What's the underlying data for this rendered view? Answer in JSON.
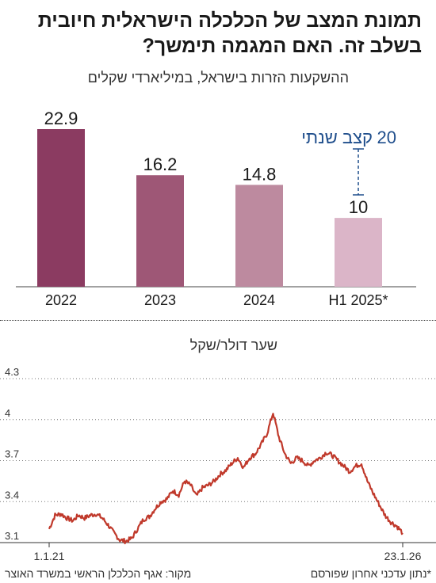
{
  "title": "תמונת המצב של הכלכלה הישראלית חיובית בשלב זה. האם המגמה תימשך?",
  "colors": {
    "accent": "#c0392b",
    "annotation": "#1f4e8c"
  },
  "chart_data": [
    {
      "type": "bar",
      "title": "ההשקעות הזרות בישראל, במיליארדי שקלים",
      "categories": [
        "2022",
        "2023",
        "2024",
        "H1 2025*"
      ],
      "values": [
        22.9,
        16.2,
        14.8,
        10
      ],
      "value_labels": [
        "22.9",
        "16.2",
        "14.8",
        "10"
      ],
      "bar_colors": [
        "#8b3b61",
        "#9e5776",
        "#bd8a9f",
        "#dbb5c8"
      ],
      "annotation": {
        "category": "H1 2025*",
        "value": 20,
        "text_value": "20",
        "text_label": "קצב שנתי"
      },
      "ylim": [
        0,
        22.9
      ]
    },
    {
      "type": "line",
      "title": "שער דולר/שקל",
      "x_start": "1.1.21",
      "x_end": "23.1.26",
      "x_tick_labels": [
        "1.1.21",
        "23.1.26"
      ],
      "y_ticks": [
        "3.1",
        "3.4",
        "3.7",
        "4",
        "4.3"
      ],
      "ylim": [
        3.1,
        4.3
      ],
      "series": [
        {
          "color": "#c0392b",
          "values": [
            3.2,
            3.3,
            3.31,
            3.28,
            3.26,
            3.3,
            3.28,
            3.3,
            3.31,
            3.28,
            3.23,
            3.17,
            3.12,
            3.11,
            3.13,
            3.2,
            3.27,
            3.29,
            3.35,
            3.4,
            3.42,
            3.48,
            3.45,
            3.55,
            3.52,
            3.44,
            3.5,
            3.52,
            3.55,
            3.6,
            3.63,
            3.68,
            3.72,
            3.65,
            3.72,
            3.75,
            3.82,
            3.9,
            4.05,
            3.87,
            3.75,
            3.68,
            3.72,
            3.7,
            3.66,
            3.7,
            3.72,
            3.76,
            3.74,
            3.7,
            3.66,
            3.62,
            3.66,
            3.68,
            3.55,
            3.46,
            3.38,
            3.3,
            3.25,
            3.22,
            3.17
          ]
        }
      ]
    }
  ],
  "footer": {
    "source": "מקור: אגף הכלכלן הראשי במשרד האוצר",
    "note": "*נתון עדכני אחרון שפורסם"
  }
}
